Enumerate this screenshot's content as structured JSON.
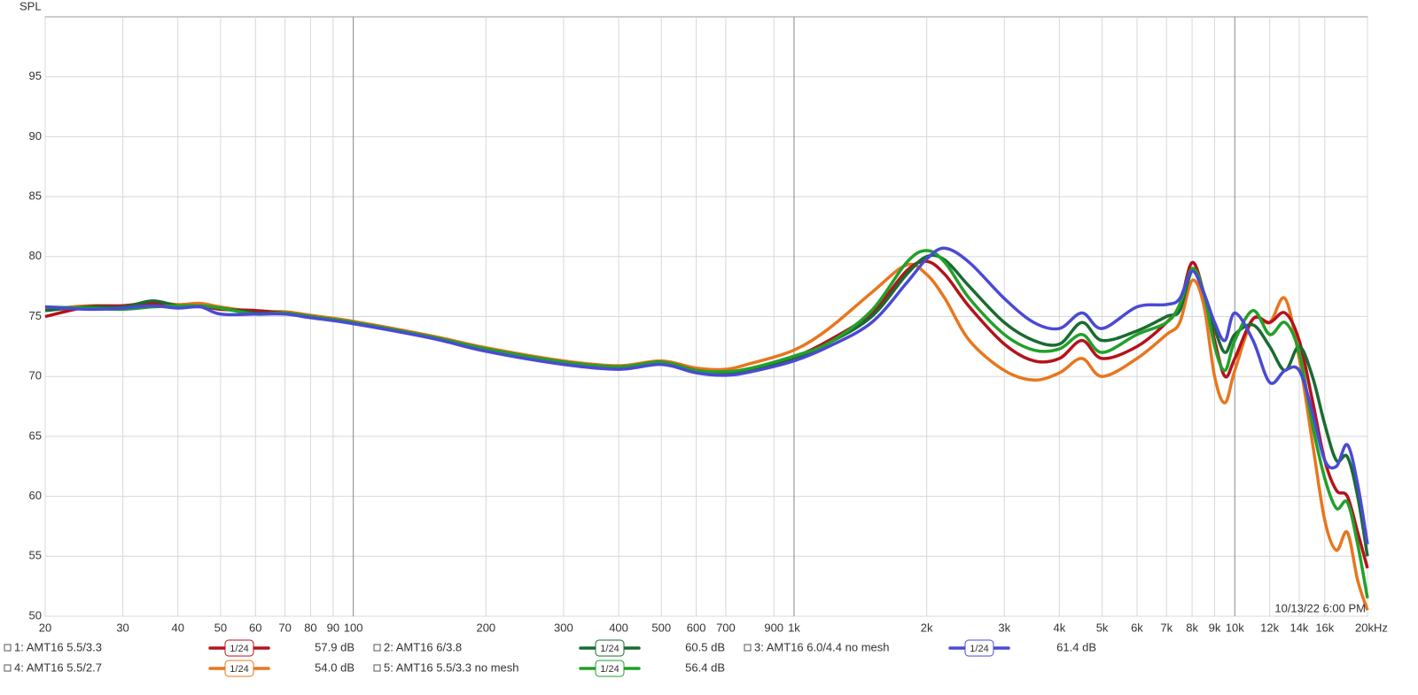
{
  "chart_data": {
    "type": "line",
    "ylabel": "SPL",
    "timestamp": "10/13/22 6:00 PM",
    "log_x": true,
    "grid": true,
    "xlim": [
      20,
      20000
    ],
    "ylim": [
      50,
      100
    ],
    "yticks": [
      50,
      55,
      60,
      65,
      70,
      75,
      80,
      85,
      90,
      95
    ],
    "xticks": [
      20,
      30,
      40,
      50,
      60,
      70,
      80,
      90,
      100,
      200,
      300,
      400,
      500,
      600,
      700,
      {
        "value": 900,
        "label": "900"
      },
      {
        "value": 1000,
        "label": "1k"
      },
      {
        "value": 2000,
        "label": "2k"
      },
      {
        "value": 3000,
        "label": "3k"
      },
      {
        "value": 4000,
        "label": "4k"
      },
      {
        "value": 5000,
        "label": "5k"
      },
      {
        "value": 6000,
        "label": "6k"
      },
      {
        "value": 7000,
        "label": "7k"
      },
      {
        "value": 8000,
        "label": "8k"
      },
      {
        "value": 9000,
        "label": "9k"
      },
      {
        "value": 10000,
        "label": "10k"
      },
      {
        "value": 12000,
        "label": "12k"
      },
      {
        "value": 14000,
        "label": "14k"
      },
      {
        "value": 16000,
        "label": "16k"
      },
      {
        "value": 20000,
        "label": "20kHz"
      }
    ],
    "x": [
      20,
      25,
      30,
      35,
      40,
      45,
      50,
      60,
      70,
      80,
      100,
      150,
      200,
      300,
      400,
      500,
      600,
      700,
      800,
      1000,
      1200,
      1500,
      1800,
      2000,
      2200,
      2500,
      3000,
      3500,
      4000,
      4500,
      5000,
      6000,
      7000,
      7500,
      8000,
      8500,
      9000,
      9500,
      10000,
      11000,
      12000,
      13000,
      14000,
      15000,
      16000,
      17000,
      18000,
      19000,
      20000
    ],
    "series": [
      {
        "name": "1: AMT16 5.5/3.3",
        "color": "#b5121b",
        "smoothing": "1/24",
        "level": "57.9 dB",
        "values": [
          75.0,
          75.8,
          75.9,
          76.1,
          75.8,
          75.9,
          75.6,
          75.5,
          75.3,
          75.0,
          74.5,
          73.3,
          72.3,
          71.2,
          70.8,
          71.2,
          70.5,
          70.3,
          70.6,
          71.6,
          73.0,
          75.3,
          78.8,
          79.6,
          78.5,
          75.8,
          72.7,
          71.3,
          71.5,
          73.0,
          71.5,
          72.5,
          74.5,
          76.0,
          79.5,
          77.0,
          73.0,
          70.0,
          71.5,
          74.8,
          74.5,
          75.3,
          73.0,
          68.0,
          63.0,
          60.5,
          60.0,
          57.0,
          54.0
        ]
      },
      {
        "name": "2: AMT16 6/3.8",
        "color": "#1a6b30",
        "smoothing": "1/24",
        "level": "60.5 dB",
        "values": [
          75.5,
          75.8,
          75.8,
          76.3,
          75.9,
          75.9,
          75.7,
          75.3,
          75.3,
          75.0,
          74.5,
          73.3,
          72.3,
          71.2,
          70.8,
          71.1,
          70.5,
          70.3,
          70.6,
          71.5,
          72.8,
          75.0,
          78.5,
          80.0,
          79.7,
          77.5,
          74.5,
          73.0,
          72.7,
          74.5,
          73.0,
          73.8,
          75.0,
          75.5,
          78.8,
          77.0,
          74.0,
          72.0,
          73.5,
          74.3,
          72.5,
          70.5,
          72.5,
          70.0,
          66.0,
          63.0,
          63.3,
          60.0,
          55.0
        ]
      },
      {
        "name": "3: AMT16 6.0/4.4 no mesh",
        "color": "#4a4ad4",
        "smoothing": "1/24",
        "level": "61.4 dB",
        "values": [
          75.8,
          75.6,
          75.7,
          75.9,
          75.7,
          75.8,
          75.2,
          75.2,
          75.2,
          74.9,
          74.4,
          73.2,
          72.1,
          71.0,
          70.6,
          71.0,
          70.3,
          70.1,
          70.4,
          71.3,
          72.5,
          74.5,
          77.8,
          79.8,
          80.7,
          79.5,
          76.5,
          74.5,
          74.0,
          75.3,
          74.0,
          75.8,
          76.0,
          76.5,
          78.8,
          77.0,
          74.5,
          73.0,
          75.3,
          73.0,
          69.5,
          70.5,
          70.5,
          67.0,
          63.0,
          62.5,
          64.3,
          61.0,
          56.0
        ]
      },
      {
        "name": "4: AMT16 5.5/2.7",
        "color": "#e8761e",
        "smoothing": "1/24",
        "level": "54.0 dB",
        "values": [
          75.6,
          75.9,
          75.9,
          76.2,
          76.0,
          76.1,
          75.8,
          75.4,
          75.4,
          75.1,
          74.6,
          73.4,
          72.4,
          71.3,
          70.9,
          71.3,
          70.7,
          70.6,
          71.1,
          72.2,
          74.0,
          77.0,
          79.3,
          78.5,
          76.5,
          73.0,
          70.5,
          69.7,
          70.3,
          71.5,
          70.0,
          71.5,
          73.5,
          74.5,
          78.0,
          76.0,
          70.0,
          67.8,
          70.5,
          74.8,
          74.5,
          76.5,
          71.5,
          64.5,
          58.0,
          55.5,
          57.0,
          53.0,
          50.5
        ]
      },
      {
        "name": "5: AMT16 5.5/3.3 no mesh",
        "color": "#22a02a",
        "smoothing": "1/24",
        "level": "56.4 dB",
        "values": [
          75.8,
          75.7,
          75.6,
          75.8,
          75.9,
          75.9,
          75.7,
          75.2,
          75.3,
          75.0,
          74.5,
          73.3,
          72.3,
          71.2,
          70.8,
          71.2,
          70.5,
          70.4,
          70.7,
          71.7,
          72.8,
          75.5,
          79.5,
          80.5,
          79.5,
          76.5,
          73.5,
          72.2,
          72.3,
          73.5,
          72.0,
          73.5,
          74.5,
          76.0,
          79.0,
          77.0,
          72.5,
          70.5,
          73.0,
          75.5,
          73.5,
          74.5,
          72.0,
          66.0,
          61.5,
          59.0,
          59.5,
          56.0,
          51.5
        ]
      }
    ]
  }
}
